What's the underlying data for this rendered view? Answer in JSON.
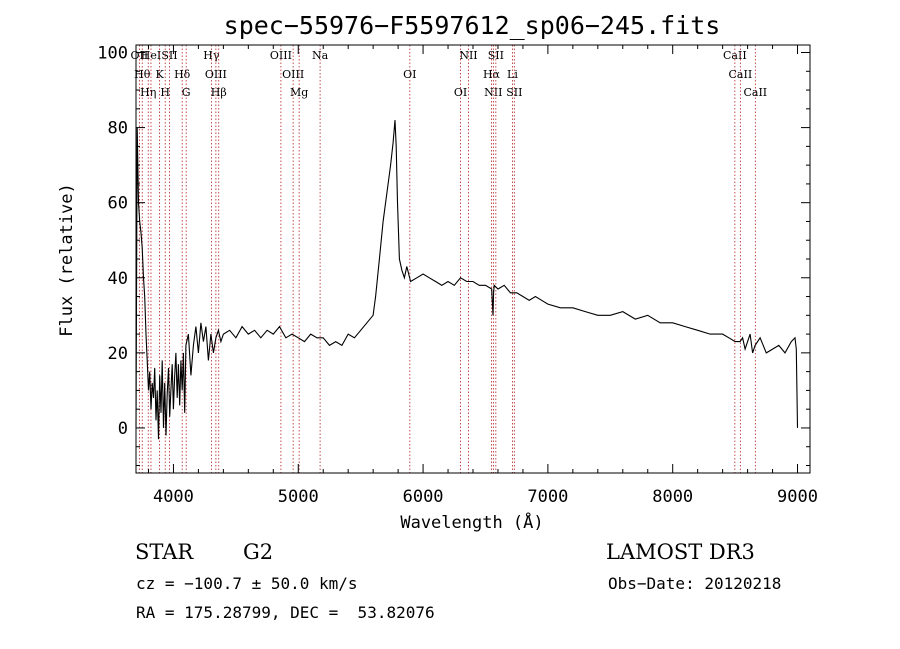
{
  "chart_data": {
    "type": "line",
    "title": "spec−55976−F5597612_sp06−245.fits",
    "xlabel": "Wavelength (Å)",
    "ylabel": "Flux (relative)",
    "xlim": [
      3700,
      9100
    ],
    "ylim": [
      -12,
      102
    ],
    "x_ticks": [
      4000,
      5000,
      6000,
      7000,
      8000,
      9000
    ],
    "x_tick_labels": [
      "4000",
      "5000",
      "6000",
      "7000",
      "8000",
      "9000"
    ],
    "y_ticks": [
      0,
      20,
      40,
      60,
      80,
      100
    ],
    "y_tick_labels": [
      "0",
      "20",
      "40",
      "60",
      "80",
      "100"
    ],
    "grid": false,
    "series": [
      {
        "name": "spectrum",
        "x": [
          3700,
          3710,
          3720,
          3730,
          3740,
          3750,
          3760,
          3770,
          3780,
          3790,
          3800,
          3810,
          3820,
          3830,
          3840,
          3850,
          3860,
          3870,
          3880,
          3890,
          3900,
          3910,
          3920,
          3930,
          3940,
          3950,
          3960,
          3970,
          3980,
          3990,
          4000,
          4010,
          4020,
          4030,
          4040,
          4050,
          4060,
          4070,
          4080,
          4090,
          4100,
          4120,
          4140,
          4160,
          4180,
          4200,
          4220,
          4240,
          4260,
          4280,
          4300,
          4320,
          4340,
          4360,
          4380,
          4400,
          4450,
          4500,
          4550,
          4600,
          4650,
          4700,
          4750,
          4800,
          4850,
          4900,
          4950,
          5000,
          5050,
          5100,
          5150,
          5200,
          5250,
          5300,
          5350,
          5400,
          5450,
          5500,
          5550,
          5600,
          5620,
          5650,
          5680,
          5700,
          5720,
          5740,
          5760,
          5775,
          5785,
          5795,
          5810,
          5830,
          5850,
          5870,
          5900,
          5950,
          6000,
          6050,
          6100,
          6150,
          6200,
          6250,
          6300,
          6350,
          6400,
          6450,
          6500,
          6550,
          6560,
          6565,
          6570,
          6600,
          6650,
          6700,
          6750,
          6800,
          6850,
          6900,
          6950,
          7000,
          7100,
          7200,
          7300,
          7400,
          7500,
          7600,
          7700,
          7800,
          7900,
          8000,
          8100,
          8200,
          8300,
          8400,
          8450,
          8500,
          8540,
          8560,
          8580,
          8620,
          8640,
          8660,
          8700,
          8750,
          8800,
          8850,
          8900,
          8950,
          8980,
          8990,
          9000
        ],
        "y": [
          0,
          80,
          60,
          55,
          52,
          48,
          40,
          35,
          25,
          18,
          10,
          15,
          5,
          12,
          8,
          16,
          2,
          10,
          -3,
          14,
          4,
          18,
          0,
          12,
          -2,
          9,
          16,
          3,
          10,
          17,
          5,
          14,
          20,
          8,
          17,
          6,
          18,
          10,
          20,
          4,
          22,
          25,
          14,
          22,
          27,
          20,
          28,
          23,
          27,
          18,
          25,
          20,
          24,
          26,
          23,
          25,
          26,
          24,
          27,
          25,
          26,
          24,
          26,
          25,
          27,
          24,
          25,
          24,
          23,
          25,
          24,
          24,
          22,
          23,
          22,
          25,
          24,
          26,
          28,
          30,
          35,
          45,
          55,
          60,
          65,
          70,
          76,
          82,
          75,
          60,
          45,
          42,
          40,
          43,
          39,
          40,
          41,
          40,
          39,
          38,
          39,
          38,
          40,
          39,
          39,
          38,
          38,
          37,
          30,
          36,
          38,
          37,
          38,
          36,
          36,
          35,
          34,
          35,
          34,
          33,
          32,
          32,
          31,
          30,
          30,
          31,
          29,
          30,
          28,
          28,
          27,
          26,
          25,
          25,
          24,
          23,
          23,
          24,
          21,
          25,
          20,
          22,
          24,
          20,
          21,
          22,
          20,
          23,
          24,
          21,
          0
        ]
      }
    ],
    "lines": [
      {
        "wavelength": 3727,
        "label": "OII"
      },
      {
        "wavelength": 3750,
        "label": "Hθ"
      },
      {
        "wavelength": 3798,
        "label": "Hη"
      },
      {
        "wavelength": 3820,
        "label": "HeI"
      },
      {
        "wavelength": 3889,
        "label": "K"
      },
      {
        "wavelength": 3934,
        "label": "H"
      },
      {
        "wavelength": 3968,
        "label": "SII"
      },
      {
        "wavelength": 4070,
        "label": "Hδ"
      },
      {
        "wavelength": 4102,
        "label": "G"
      },
      {
        "wavelength": 4304,
        "label": "Hγ"
      },
      {
        "wavelength": 4340,
        "label": "OIII"
      },
      {
        "wavelength": 4363,
        "label": "Hβ"
      },
      {
        "wavelength": 4861,
        "label": "OIII"
      },
      {
        "wavelength": 4959,
        "label": "OIII"
      },
      {
        "wavelength": 5007,
        "label": "Mg"
      },
      {
        "wavelength": 5175,
        "label": "Na"
      },
      {
        "wavelength": 5894,
        "label": "OI"
      },
      {
        "wavelength": 6300,
        "label": "OI"
      },
      {
        "wavelength": 6364,
        "label": "NII"
      },
      {
        "wavelength": 6548,
        "label": "Hα"
      },
      {
        "wavelength": 6563,
        "label": "NII"
      },
      {
        "wavelength": 6583,
        "label": "SII"
      },
      {
        "wavelength": 6716,
        "label": "Li"
      },
      {
        "wavelength": 6731,
        "label": "SII"
      },
      {
        "wavelength": 8498,
        "label": "CaII"
      },
      {
        "wavelength": 8542,
        "label": "CaII"
      },
      {
        "wavelength": 8662,
        "label": "CaII"
      }
    ]
  },
  "info": {
    "class_label": "STAR",
    "subclass": "G2",
    "survey": "LAMOST DR3",
    "cz": "cz = −100.7 ± 50.0 km/s",
    "obs_date": "Obs−Date: 20120218",
    "coords": "RA = 175.28799, DEC =  53.82076"
  },
  "colors": {
    "line_marker": "#b22222",
    "spectrum": "#000000",
    "axis": "#000000"
  }
}
